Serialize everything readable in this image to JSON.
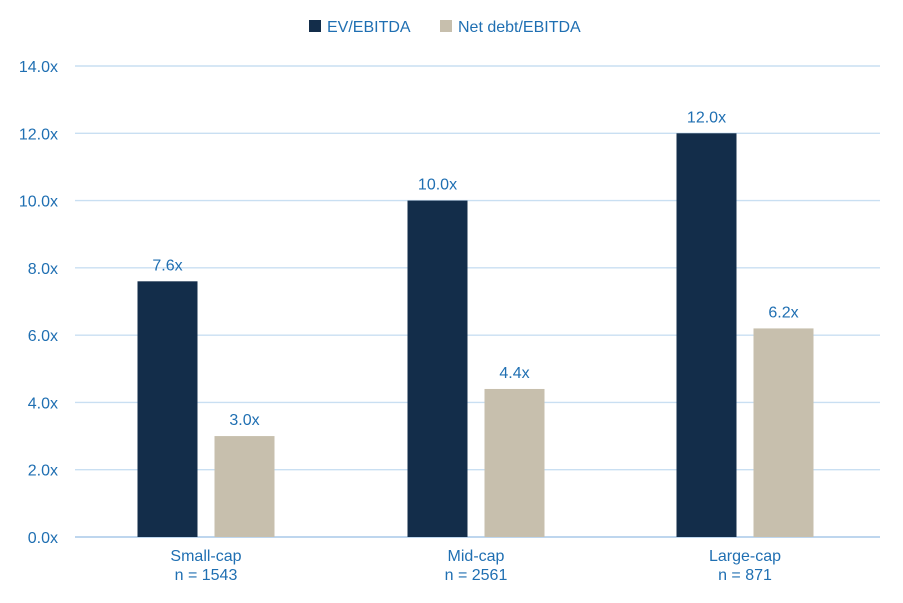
{
  "chart_data": {
    "type": "bar",
    "categories": [
      [
        "Small-cap",
        "n = 1543"
      ],
      [
        "Mid-cap",
        "n = 2561"
      ],
      [
        "Large-cap",
        "n = 871"
      ]
    ],
    "series": [
      {
        "name": "EV/EBITDA",
        "values": [
          7.6,
          10.0,
          12.0
        ],
        "labels": [
          "7.6x",
          "10.0x",
          "12.0x"
        ],
        "color": "#132d4a"
      },
      {
        "name": "Net debt/EBITDA",
        "values": [
          3.0,
          4.4,
          6.2
        ],
        "labels": [
          "3.0x",
          "4.4x",
          "6.2x"
        ],
        "color": "#c7bfad"
      }
    ],
    "ylim": [
      0,
      14
    ],
    "yticks": [
      0,
      2,
      4,
      6,
      8,
      10,
      12,
      14
    ],
    "ytick_labels": [
      "0.0x",
      "2.0x",
      "4.0x",
      "6.0x",
      "8.0x",
      "10.0x",
      "12.0x",
      "14.0x"
    ],
    "grid": true,
    "legend": "top-center",
    "colors": {
      "text": "#1f6fb2",
      "grid": "#c9dff2"
    }
  }
}
